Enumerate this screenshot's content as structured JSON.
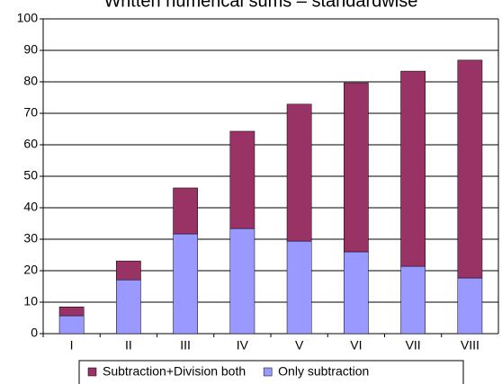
{
  "chart_data": {
    "type": "stacked_bar",
    "title": "Written numerical sums – standardwise",
    "categories": [
      "I",
      "II",
      "III",
      "IV",
      "V",
      "VI",
      "VII",
      "VIII"
    ],
    "series": [
      {
        "name": "Only subtraction",
        "color": "#9999ff",
        "values": [
          5.7,
          17.1,
          31.7,
          33.4,
          29.4,
          26,
          21.4,
          17.7
        ]
      },
      {
        "name": "Subtraction+Division both",
        "color": "#993366",
        "values": [
          2.8,
          6.0,
          14.6,
          30.9,
          43.5,
          53.7,
          62,
          69.2
        ]
      }
    ],
    "ylim": [
      0,
      100
    ],
    "yticks": [
      0,
      10,
      20,
      30,
      40,
      50,
      60,
      70,
      80,
      90,
      100
    ],
    "grid": true
  }
}
